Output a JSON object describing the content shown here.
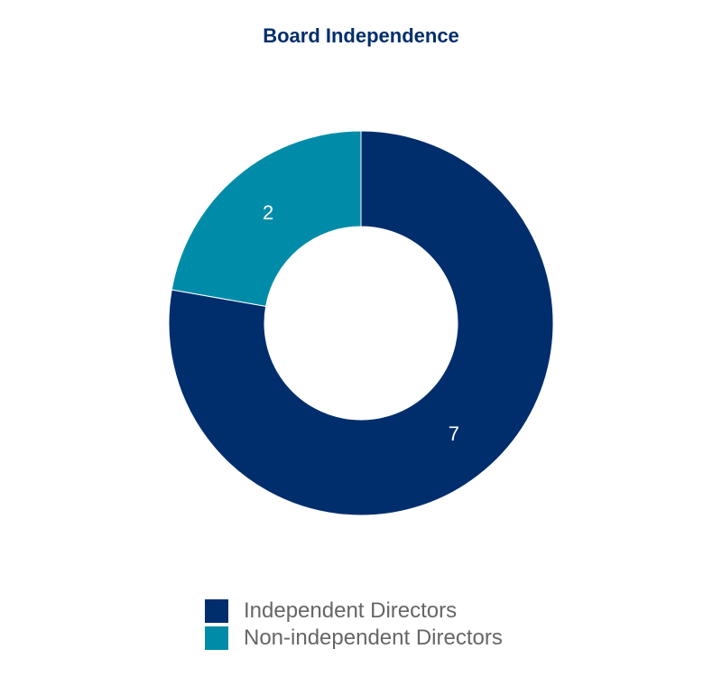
{
  "chart_data": {
    "type": "pie",
    "variant": "donut",
    "title": "Board Independence",
    "categories": [
      "Independent Directors",
      "Non-independent Directors"
    ],
    "values": [
      7,
      2
    ],
    "colors": [
      "#002e6d",
      "#008ca8"
    ],
    "data_labels": [
      "7",
      "2"
    ],
    "legend_position": "bottom"
  }
}
